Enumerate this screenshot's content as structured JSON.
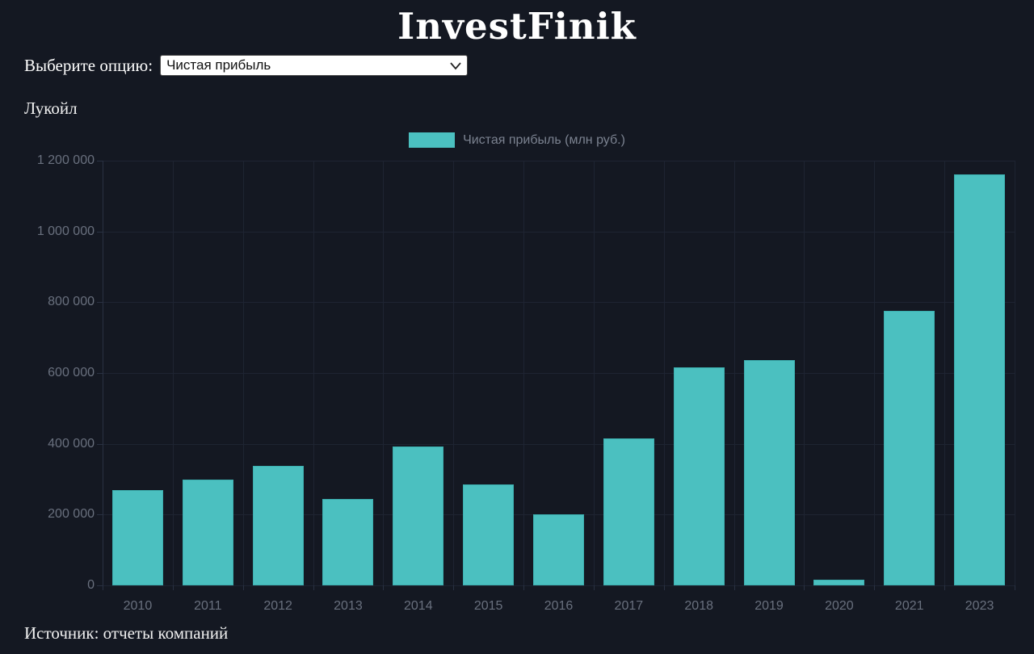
{
  "header": {
    "title": "InvestFinik"
  },
  "controls": {
    "label": "Выберите опцию:",
    "select_value": "Чистая прибыль"
  },
  "company": "Лукойл",
  "legend": {
    "label": "Чистая прибыль (млн руб.)",
    "swatch_color": "#4bc0c0"
  },
  "source": "Источник: отчеты компаний",
  "colors": {
    "background": "#141822",
    "bar": "#4bc0c0",
    "gridline": "#1e2432",
    "tick_text": "#69707e",
    "legend_text": "#7b8290",
    "title_text": "#ffffff"
  },
  "chart_data": {
    "type": "bar",
    "title": "Лукойл",
    "series_name": "Чистая прибыль (млн руб.)",
    "categories": [
      "2010",
      "2011",
      "2012",
      "2013",
      "2014",
      "2015",
      "2016",
      "2017",
      "2018",
      "2019",
      "2020",
      "2021",
      "2023"
    ],
    "values": [
      269000,
      300000,
      337000,
      244000,
      392000,
      285000,
      201000,
      415000,
      616000,
      637000,
      16000,
      776000,
      1162000
    ],
    "xlabel": "",
    "ylabel": "",
    "ylim": [
      0,
      1200000
    ],
    "ytick_step": 200000,
    "ytick_labels": [
      "0",
      "200 000",
      "400 000",
      "600 000",
      "800 000",
      "1 000 000",
      "1 200 000"
    ],
    "grid": true,
    "legend_position": "top"
  }
}
